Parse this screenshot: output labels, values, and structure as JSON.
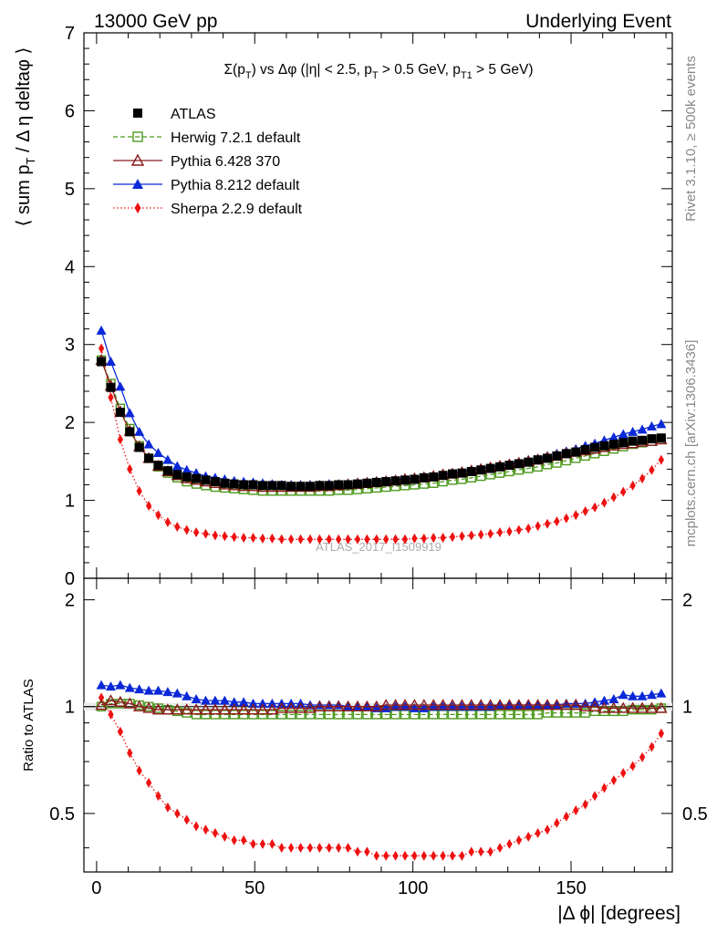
{
  "header": {
    "left": "13000 GeV pp",
    "right": "Underlying Event"
  },
  "title": "Σ(p_T) vs Δφ (|η| < 2.5, p_T > 0.5 GeV, p_T1 > 5 GeV)",
  "title_parts": {
    "a": "Σ(p",
    "b": "T",
    "c": ") vs Δφ (|η| < 2.5, p",
    "d": "T",
    "e": " > 0.5 GeV, p",
    "f": "T1",
    "g": " > 5 GeV)"
  },
  "ylabel_parts": {
    "a": "⟨ sum p",
    "b": "T",
    "c": " / Δ η deltaφ ⟩"
  },
  "ratio_ylabel": "Ratio to ATLAS",
  "xlabel": "|Δ ϕ| [degrees]",
  "watermark": "ATLAS_2017_I1509919",
  "side_right_top": "Rivet 3.1.10, ≥ 500k events",
  "side_right_bottom": "mcplots.cern.ch [arXiv:1306.3436]",
  "colors": {
    "atlas": "#000000",
    "herwig": "#4d9a1e",
    "pythia6": "#8b1a1a",
    "pythia8": "#0a28d8",
    "sherpa": "#ee1111"
  },
  "chart_data": [
    {
      "type": "line",
      "panel": "main",
      "xlim": [
        -4,
        182
      ],
      "ylim": [
        0,
        7
      ],
      "xticks": [
        0,
        50,
        100,
        150
      ],
      "yticks": [
        0,
        1,
        2,
        3,
        4,
        5,
        6,
        7
      ],
      "x": [
        1.5,
        4.5,
        7.5,
        10.5,
        13.5,
        16.5,
        19.5,
        22.5,
        25.5,
        28.5,
        31.5,
        34.5,
        37.5,
        40.5,
        43.5,
        46.5,
        49.5,
        52.5,
        55.5,
        58.5,
        61.5,
        64.5,
        67.5,
        70.5,
        73.5,
        76.5,
        79.5,
        82.5,
        85.5,
        88.5,
        91.5,
        94.5,
        97.5,
        100.5,
        103.5,
        106.5,
        109.5,
        112.5,
        115.5,
        118.5,
        121.5,
        124.5,
        127.5,
        130.5,
        133.5,
        136.5,
        139.5,
        142.5,
        145.5,
        148.5,
        151.5,
        154.5,
        157.5,
        160.5,
        163.5,
        166.5,
        169.5,
        172.5,
        175.5,
        178.5
      ],
      "series": [
        {
          "name": "ATLAS",
          "key": "atlas",
          "marker": "square-filled",
          "values": [
            2.78,
            2.45,
            2.13,
            1.88,
            1.68,
            1.54,
            1.45,
            1.38,
            1.33,
            1.3,
            1.28,
            1.26,
            1.24,
            1.22,
            1.21,
            1.2,
            1.2,
            1.19,
            1.19,
            1.19,
            1.18,
            1.18,
            1.18,
            1.19,
            1.19,
            1.2,
            1.2,
            1.21,
            1.22,
            1.23,
            1.24,
            1.25,
            1.26,
            1.27,
            1.29,
            1.3,
            1.32,
            1.34,
            1.35,
            1.37,
            1.39,
            1.41,
            1.43,
            1.45,
            1.47,
            1.49,
            1.52,
            1.54,
            1.57,
            1.6,
            1.62,
            1.65,
            1.68,
            1.7,
            1.72,
            1.74,
            1.76,
            1.77,
            1.79,
            1.8
          ]
        },
        {
          "name": "Herwig 7.2.1 default",
          "key": "herwig",
          "marker": "square-open",
          "dash": "5,3",
          "values": [
            2.8,
            2.5,
            2.18,
            1.92,
            1.7,
            1.54,
            1.43,
            1.35,
            1.29,
            1.24,
            1.21,
            1.19,
            1.17,
            1.16,
            1.15,
            1.14,
            1.13,
            1.12,
            1.12,
            1.12,
            1.12,
            1.12,
            1.12,
            1.12,
            1.12,
            1.13,
            1.13,
            1.14,
            1.15,
            1.16,
            1.17,
            1.18,
            1.19,
            1.2,
            1.21,
            1.22,
            1.24,
            1.26,
            1.27,
            1.29,
            1.31,
            1.33,
            1.35,
            1.37,
            1.39,
            1.41,
            1.43,
            1.46,
            1.48,
            1.51,
            1.54,
            1.57,
            1.6,
            1.63,
            1.66,
            1.69,
            1.72,
            1.74,
            1.76,
            1.78
          ]
        },
        {
          "name": "Pythia 6.428 370",
          "key": "pythia6",
          "marker": "triangle-open",
          "values": [
            2.8,
            2.47,
            2.14,
            1.89,
            1.69,
            1.54,
            1.44,
            1.37,
            1.32,
            1.28,
            1.26,
            1.24,
            1.22,
            1.2,
            1.19,
            1.18,
            1.18,
            1.17,
            1.17,
            1.17,
            1.17,
            1.17,
            1.17,
            1.18,
            1.18,
            1.19,
            1.2,
            1.21,
            1.22,
            1.23,
            1.24,
            1.25,
            1.27,
            1.28,
            1.29,
            1.31,
            1.33,
            1.34,
            1.36,
            1.38,
            1.4,
            1.42,
            1.44,
            1.46,
            1.48,
            1.5,
            1.52,
            1.55,
            1.57,
            1.6,
            1.62,
            1.64,
            1.66,
            1.68,
            1.7,
            1.72,
            1.73,
            1.75,
            1.76,
            1.78
          ]
        },
        {
          "name": "Pythia 8.212 default",
          "key": "pythia8",
          "marker": "triangle-filled",
          "values": [
            3.18,
            2.78,
            2.46,
            2.12,
            1.88,
            1.72,
            1.61,
            1.52,
            1.44,
            1.39,
            1.35,
            1.31,
            1.29,
            1.27,
            1.25,
            1.24,
            1.23,
            1.22,
            1.21,
            1.2,
            1.2,
            1.2,
            1.2,
            1.2,
            1.21,
            1.21,
            1.22,
            1.23,
            1.24,
            1.25,
            1.26,
            1.27,
            1.28,
            1.29,
            1.31,
            1.32,
            1.34,
            1.35,
            1.37,
            1.39,
            1.41,
            1.43,
            1.45,
            1.47,
            1.49,
            1.52,
            1.54,
            1.57,
            1.6,
            1.63,
            1.66,
            1.7,
            1.73,
            1.77,
            1.81,
            1.85,
            1.88,
            1.91,
            1.95,
            1.98
          ]
        },
        {
          "name": "Sherpa 2.2.9 default",
          "key": "sherpa",
          "marker": "diamond-filled",
          "dash": "1.5,2.5",
          "values": [
            2.95,
            2.32,
            1.78,
            1.4,
            1.12,
            0.93,
            0.81,
            0.72,
            0.66,
            0.62,
            0.59,
            0.57,
            0.55,
            0.54,
            0.53,
            0.52,
            0.52,
            0.51,
            0.51,
            0.5,
            0.5,
            0.5,
            0.5,
            0.5,
            0.5,
            0.5,
            0.5,
            0.5,
            0.5,
            0.5,
            0.5,
            0.5,
            0.5,
            0.51,
            0.51,
            0.52,
            0.52,
            0.53,
            0.54,
            0.55,
            0.56,
            0.57,
            0.59,
            0.6,
            0.62,
            0.64,
            0.67,
            0.7,
            0.73,
            0.77,
            0.81,
            0.86,
            0.91,
            0.97,
            1.04,
            1.11,
            1.19,
            1.28,
            1.39,
            1.52
          ]
        }
      ]
    },
    {
      "type": "line",
      "panel": "ratio",
      "xlim": [
        -4,
        182
      ],
      "ylim": [
        0.342,
        2.3
      ],
      "yscale": "log",
      "yticks": [
        0.5,
        1,
        2
      ],
      "ytick_labels": [
        "0.5",
        "1",
        "2"
      ],
      "series": [
        {
          "name": "ATLAS",
          "key": "atlas",
          "band": true
        },
        {
          "name": "Herwig 7.2.1 default",
          "key": "herwig",
          "marker": "square-open",
          "dash": "5,3",
          "values": [
            1.0,
            1.02,
            1.02,
            1.02,
            1.01,
            1.0,
            0.99,
            0.98,
            0.97,
            0.96,
            0.95,
            0.95,
            0.95,
            0.95,
            0.95,
            0.95,
            0.95,
            0.95,
            0.95,
            0.95,
            0.95,
            0.95,
            0.95,
            0.95,
            0.95,
            0.95,
            0.95,
            0.95,
            0.95,
            0.95,
            0.95,
            0.95,
            0.95,
            0.95,
            0.95,
            0.95,
            0.95,
            0.95,
            0.95,
            0.95,
            0.95,
            0.95,
            0.95,
            0.95,
            0.95,
            0.95,
            0.95,
            0.96,
            0.96,
            0.96,
            0.96,
            0.96,
            0.97,
            0.97,
            0.97,
            0.97,
            0.98,
            0.98,
            0.98,
            0.99
          ]
        },
        {
          "name": "Pythia 6.428 370",
          "key": "pythia6",
          "marker": "triangle-open",
          "values": [
            1.01,
            1.04,
            1.03,
            1.02,
            1.0,
            0.99,
            0.98,
            0.98,
            0.98,
            0.98,
            0.98,
            0.98,
            0.98,
            0.98,
            0.98,
            0.98,
            0.98,
            0.98,
            0.98,
            0.99,
            0.99,
            0.99,
            0.99,
            1.0,
            1.0,
            1.0,
            1.0,
            1.0,
            1.0,
            1.0,
            1.01,
            1.01,
            1.01,
            1.01,
            1.01,
            1.01,
            1.01,
            1.01,
            1.01,
            1.01,
            1.01,
            1.01,
            1.01,
            1.01,
            1.01,
            1.01,
            1.01,
            1.01,
            1.01,
            1.01,
            1.01,
            1.0,
            1.0,
            0.99,
            0.99,
            0.99,
            0.99,
            0.99,
            0.99,
            0.99
          ]
        },
        {
          "name": "Pythia 8.212 default",
          "key": "pythia8",
          "marker": "triangle-filled",
          "values": [
            1.15,
            1.14,
            1.15,
            1.13,
            1.12,
            1.11,
            1.11,
            1.1,
            1.09,
            1.07,
            1.05,
            1.04,
            1.04,
            1.04,
            1.03,
            1.03,
            1.02,
            1.02,
            1.02,
            1.02,
            1.02,
            1.02,
            1.01,
            1.01,
            1.01,
            1.01,
            1.0,
            1.0,
            1.0,
            0.99,
            0.99,
            1.0,
            1.0,
            0.99,
            0.99,
            1.0,
            1.0,
            1.0,
            1.0,
            1.0,
            1.0,
            1.0,
            1.01,
            1.01,
            1.01,
            1.01,
            1.01,
            1.01,
            1.01,
            1.02,
            1.02,
            1.02,
            1.03,
            1.04,
            1.05,
            1.08,
            1.07,
            1.07,
            1.08,
            1.09
          ]
        },
        {
          "name": "Sherpa 2.2.9 default",
          "key": "sherpa",
          "marker": "diamond-filled",
          "dash": "1.5,2.5",
          "values": [
            1.06,
            0.95,
            0.85,
            0.74,
            0.66,
            0.61,
            0.56,
            0.52,
            0.5,
            0.48,
            0.46,
            0.45,
            0.44,
            0.43,
            0.42,
            0.42,
            0.41,
            0.41,
            0.41,
            0.4,
            0.4,
            0.4,
            0.4,
            0.4,
            0.4,
            0.4,
            0.4,
            0.39,
            0.39,
            0.38,
            0.38,
            0.38,
            0.38,
            0.38,
            0.38,
            0.38,
            0.38,
            0.38,
            0.38,
            0.39,
            0.39,
            0.39,
            0.4,
            0.41,
            0.42,
            0.43,
            0.44,
            0.45,
            0.47,
            0.49,
            0.51,
            0.53,
            0.56,
            0.59,
            0.62,
            0.65,
            0.68,
            0.72,
            0.77,
            0.84
          ]
        }
      ]
    }
  ]
}
